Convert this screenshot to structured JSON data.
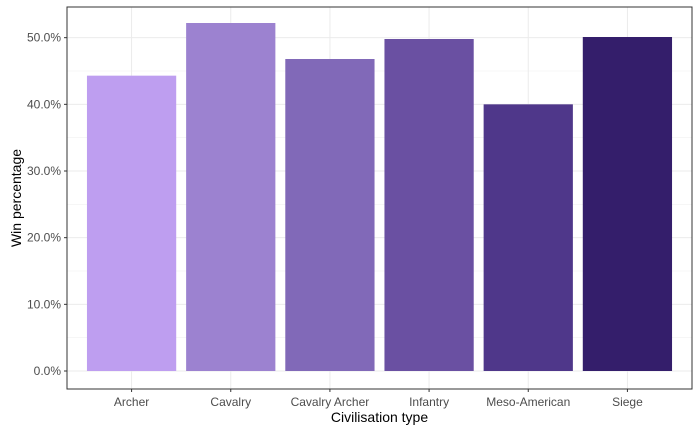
{
  "chart_data": {
    "type": "bar",
    "title": "",
    "xlabel": "Civilisation type",
    "ylabel": "Win percentage",
    "categories": [
      "Archer",
      "Cavalry",
      "Cavalry Archer",
      "Infantry",
      "Meso-American",
      "Siege"
    ],
    "values": [
      44.3,
      52.2,
      46.8,
      49.8,
      40.0,
      50.1
    ],
    "colors": [
      "#be9ef0",
      "#9c82d0",
      "#8169b8",
      "#6a50a2",
      "#4f378a",
      "#341e6b"
    ],
    "ylim": [
      0,
      54.6
    ],
    "y_ticks": [
      0,
      10,
      20,
      30,
      40,
      50
    ],
    "y_tick_labels": [
      "0.0%",
      "10.0%",
      "20.0%",
      "30.0%",
      "40.0%",
      "50.0%"
    ],
    "grid": true,
    "legend": "none"
  }
}
